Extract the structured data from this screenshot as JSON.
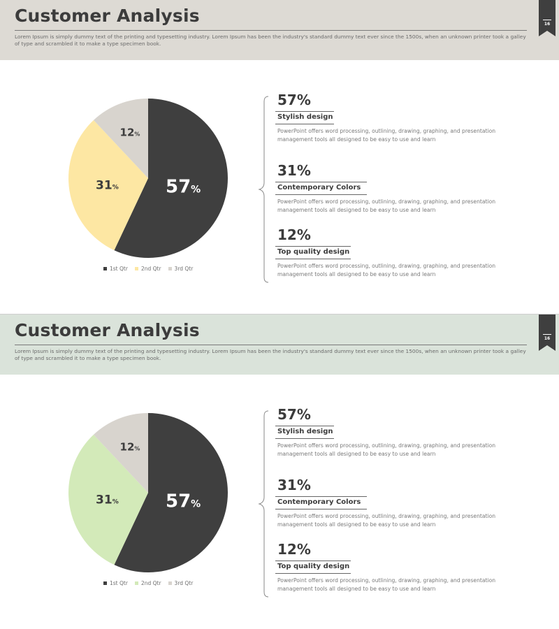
{
  "slides": [
    {
      "title": "Customer Analysis",
      "subtitle": "Lorem Ipsum is simply dummy text of the printing and typesetting industry. Lorem Ipsum has been the industry's standard dummy text ever since the 1500s, when an unknown printer took a galley of type and scrambled it to make a type specimen book.",
      "page_number": "16",
      "header_color": "#dddad4",
      "accent_color": "#fde7a3",
      "items": [
        {
          "pct": "57%",
          "heading": "Stylish design",
          "text": "PowerPoint offers word processing, outlining, drawing, graphing, and presentation management tools all designed to be easy to use and learn"
        },
        {
          "pct": "31%",
          "heading": "Contemporary Colors",
          "text": "PowerPoint offers word processing, outlining, drawing, graphing, and presentation management tools all designed to be easy to use and learn"
        },
        {
          "pct": "12%",
          "heading": "Top quality design",
          "text": "PowerPoint offers word processing, outlining, drawing, graphing, and presentation management tools all designed to be easy to use and learn"
        }
      ]
    },
    {
      "title": "Customer Analysis",
      "subtitle": "Lorem Ipsum is simply dummy text of the printing and typesetting industry. Lorem Ipsum has been the industry's standard dummy text ever since the 1500s, when an unknown printer took a galley of type and scrambled it to make a type specimen book.",
      "page_number": "16",
      "header_color": "#dae3da",
      "accent_color": "#d3eab9",
      "items": [
        {
          "pct": "57%",
          "heading": "Stylish design",
          "text": "PowerPoint offers word processing, outlining, drawing, graphing, and presentation management tools all designed to be easy to use and learn"
        },
        {
          "pct": "31%",
          "heading": "Contemporary Colors",
          "text": "PowerPoint offers word processing, outlining, drawing, graphing, and presentation management tools all designed to be easy to use and learn"
        },
        {
          "pct": "12%",
          "heading": "Top quality design",
          "text": "PowerPoint offers word processing, outlining, drawing, graphing, and presentation management tools all designed to be easy to use and learn"
        }
      ]
    }
  ],
  "chart_data": [
    {
      "type": "pie",
      "categories": [
        "1st Qtr",
        "2nd Qtr",
        "3rd Qtr"
      ],
      "values": [
        57,
        31,
        12
      ],
      "unit": "%",
      "colors": [
        "#3f3f3f",
        "#fde7a3",
        "#d8d4ce"
      ],
      "legend": "bottom"
    },
    {
      "type": "pie",
      "categories": [
        "1st Qtr",
        "2nd Qtr",
        "3rd Qtr"
      ],
      "values": [
        57,
        31,
        12
      ],
      "unit": "%",
      "colors": [
        "#3f3f3f",
        "#d3eab9",
        "#d8d4ce"
      ],
      "legend": "bottom"
    }
  ]
}
